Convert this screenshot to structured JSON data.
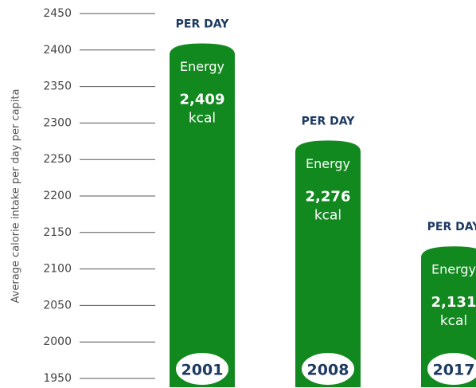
{
  "chart_data": {
    "type": "bar",
    "y_label": "Average calorie intake per day per capita",
    "categories": [
      "2001",
      "2008",
      "2017"
    ],
    "values": [
      2409,
      2276,
      2131
    ],
    "value_labels": [
      "2,409",
      "2,276",
      "2,131"
    ],
    "bar_header": "PER DAY",
    "bar_title": "Energy",
    "unit": "kcal",
    "color": "#12891f",
    "ylim": [
      1950,
      2450
    ],
    "yticks": [
      1950,
      2000,
      2050,
      2100,
      2150,
      2200,
      2250,
      2300,
      2350,
      2400,
      2450
    ]
  }
}
